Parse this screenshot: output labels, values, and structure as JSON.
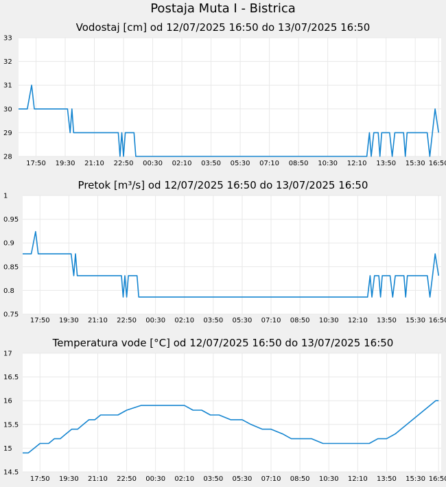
{
  "page": {
    "title": "Postaja Muta I - Bistrica"
  },
  "colors": {
    "line": "#1585d0",
    "plot_bg": "#ffffff",
    "grid": "#e8e8e8",
    "page_bg": "#f0f0f0"
  },
  "chart_data": [
    {
      "type": "line",
      "title": "Vodostaj [cm] od 12/07/2025 16:50 do 13/07/2025 16:50",
      "ylim": [
        28,
        33
      ],
      "yticks": [
        "28",
        "29",
        "30",
        "31",
        "32",
        "33"
      ],
      "x_tick_labels": [
        "17:50",
        "19:30",
        "21:10",
        "22:50",
        "00:30",
        "02:10",
        "03:50",
        "05:30",
        "07:10",
        "08:50",
        "10:30",
        "12:10",
        "13:50",
        "15:30",
        "16:50"
      ],
      "x_ticks_hours": [
        1,
        2.667,
        4.333,
        6,
        7.667,
        9.333,
        11,
        12.667,
        14.333,
        16,
        17.667,
        19.333,
        21,
        22.667,
        24
      ],
      "grid": true,
      "series": [
        {
          "x_hours": [
            0,
            0.5,
            0.75,
            0.9,
            1.05,
            1.2,
            2.8,
            2.95,
            3.05,
            3.15,
            3.25,
            5.7,
            5.8,
            5.9,
            6.0,
            6.1,
            6.2,
            6.3,
            6.4,
            6.6,
            6.7,
            7.15,
            7.35,
            19.9,
            20.05,
            20.15,
            20.3,
            20.55,
            20.65,
            20.75,
            21.0,
            21.2,
            21.35,
            21.5,
            21.6,
            21.75,
            22.0,
            22.1,
            22.2,
            23.35,
            23.5,
            23.65,
            23.8,
            24
          ],
          "y": [
            30,
            30,
            31,
            30,
            30,
            30,
            30,
            29,
            30,
            29,
            29,
            29,
            28,
            29,
            28,
            29,
            29,
            29,
            29,
            29,
            28,
            28,
            28,
            28,
            29,
            28,
            29,
            29,
            28,
            29,
            29,
            29,
            28,
            29,
            29,
            29,
            29,
            28,
            29,
            29,
            28,
            29,
            30,
            29
          ]
        }
      ]
    },
    {
      "type": "line",
      "title": "Pretok [m³/s] od 12/07/2025 16:50 do 13/07/2025 16:50",
      "ylim": [
        0.75,
        1
      ],
      "yticks": [
        "0.75",
        "0.8",
        "0.85",
        "0.9",
        "0.95",
        "1"
      ],
      "x_tick_labels": [
        "17:50",
        "19:30",
        "21:10",
        "22:50",
        "00:30",
        "02:10",
        "03:50",
        "05:30",
        "07:10",
        "08:50",
        "10:30",
        "12:10",
        "13:50",
        "15:30",
        "16:50"
      ],
      "x_ticks_hours": [
        1,
        2.667,
        4.333,
        6,
        7.667,
        9.333,
        11,
        12.667,
        14.333,
        16,
        17.667,
        19.333,
        21,
        22.667,
        24
      ],
      "grid": true,
      "series": [
        {
          "x_hours": [
            0,
            0.5,
            0.75,
            0.9,
            1.05,
            1.2,
            2.8,
            2.95,
            3.05,
            3.15,
            3.25,
            5.7,
            5.8,
            5.9,
            6.0,
            6.1,
            6.2,
            6.3,
            6.4,
            6.6,
            6.7,
            7.15,
            7.35,
            19.9,
            20.05,
            20.15,
            20.3,
            20.55,
            20.65,
            20.75,
            21.0,
            21.2,
            21.35,
            21.5,
            21.6,
            21.75,
            22.0,
            22.1,
            22.2,
            23.35,
            23.5,
            23.65,
            23.8,
            24
          ],
          "y": [
            0.877,
            0.877,
            0.924,
            0.877,
            0.877,
            0.877,
            0.877,
            0.831,
            0.877,
            0.831,
            0.831,
            0.831,
            0.786,
            0.831,
            0.786,
            0.831,
            0.831,
            0.831,
            0.831,
            0.831,
            0.786,
            0.786,
            0.786,
            0.786,
            0.831,
            0.786,
            0.831,
            0.831,
            0.786,
            0.831,
            0.831,
            0.831,
            0.786,
            0.831,
            0.831,
            0.831,
            0.831,
            0.786,
            0.831,
            0.831,
            0.786,
            0.831,
            0.877,
            0.831
          ]
        }
      ]
    },
    {
      "type": "line",
      "title": "Temperatura vode [°C] od 12/07/2025 16:50 do 13/07/2025 16:50",
      "ylim": [
        14.5,
        17
      ],
      "yticks": [
        "14.5",
        "15",
        "15.5",
        "16",
        "16.5",
        "17"
      ],
      "x_tick_labels": [
        "17:50",
        "19:30",
        "21:10",
        "22:50",
        "00:30",
        "02:10",
        "03:50",
        "05:30",
        "07:10",
        "08:50",
        "10:30",
        "12:10",
        "13:50",
        "15:30",
        "16:50"
      ],
      "x_ticks_hours": [
        1,
        2.667,
        4.333,
        6,
        7.667,
        9.333,
        11,
        12.667,
        14.333,
        16,
        17.667,
        19.333,
        21,
        22.667,
        24
      ],
      "grid": true,
      "series": [
        {
          "x_hours": [
            0,
            0.33,
            0.67,
            1.0,
            1.5,
            1.83,
            2.17,
            2.5,
            2.83,
            3.17,
            3.5,
            3.83,
            4.17,
            4.5,
            5.0,
            5.5,
            6.0,
            6.83,
            7.67,
            8.5,
            9.33,
            9.83,
            10.33,
            10.83,
            11.33,
            12.0,
            12.67,
            13.17,
            13.83,
            14.33,
            15.0,
            15.5,
            16.0,
            16.67,
            17.33,
            18.0,
            18.67,
            19.33,
            20.0,
            20.5,
            21.0,
            21.5,
            21.83,
            22.17,
            22.5,
            22.83,
            23.17,
            23.5,
            23.83,
            24.0
          ],
          "y": [
            14.9,
            14.9,
            15.0,
            15.1,
            15.1,
            15.2,
            15.2,
            15.3,
            15.4,
            15.4,
            15.5,
            15.6,
            15.6,
            15.7,
            15.7,
            15.7,
            15.8,
            15.9,
            15.9,
            15.9,
            15.9,
            15.8,
            15.8,
            15.7,
            15.7,
            15.6,
            15.6,
            15.5,
            15.4,
            15.4,
            15.3,
            15.2,
            15.2,
            15.2,
            15.1,
            15.1,
            15.1,
            15.1,
            15.1,
            15.2,
            15.2,
            15.3,
            15.4,
            15.5,
            15.6,
            15.7,
            15.8,
            15.9,
            16.0,
            16.0
          ]
        }
      ]
    }
  ]
}
